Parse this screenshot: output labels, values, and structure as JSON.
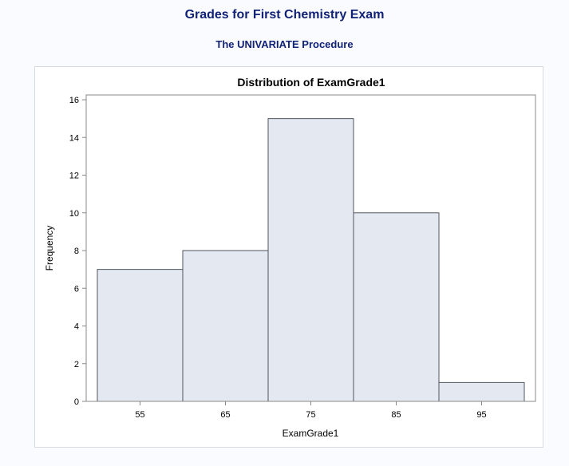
{
  "page": {
    "title": "Grades for First Chemistry Exam",
    "procedure": "The UNIVARIATE Procedure"
  },
  "chart_data": {
    "type": "bar",
    "title": "Distribution of ExamGrade1",
    "xlabel": "ExamGrade1",
    "ylabel": "Frequency",
    "categories": [
      "55",
      "65",
      "75",
      "85",
      "95"
    ],
    "x": [
      55,
      65,
      75,
      85,
      95
    ],
    "bin_width": 10,
    "values": [
      7,
      8,
      15,
      10,
      1
    ],
    "ylim": [
      0,
      16
    ],
    "yticks": [
      0,
      2,
      4,
      6,
      8,
      10,
      12,
      14,
      16
    ],
    "grid": false,
    "legend": "none",
    "colors": {
      "bar_fill": "#e3e8f1",
      "bar_stroke": "#505560",
      "axis": "#888888",
      "text": "#000000"
    }
  }
}
